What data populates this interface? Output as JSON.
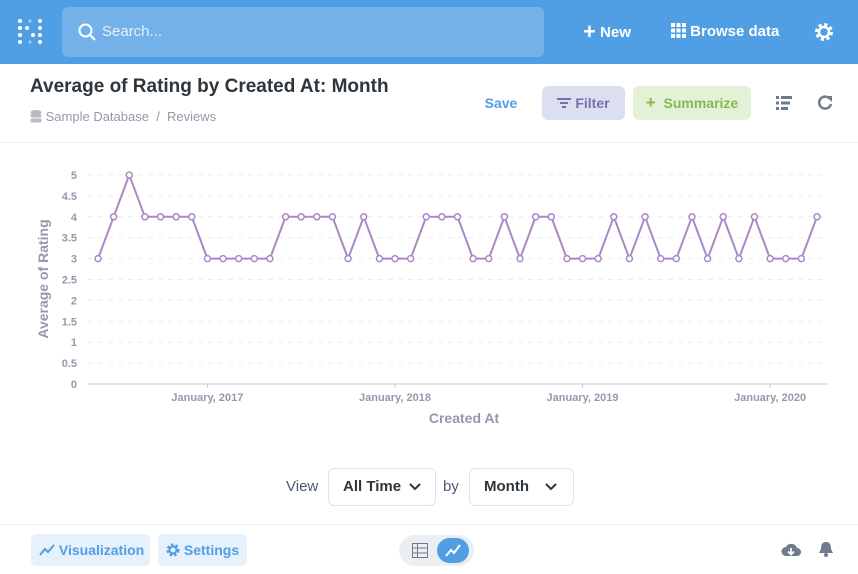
{
  "nav": {
    "search_placeholder": "Search...",
    "new": "New",
    "browse": "Browse data"
  },
  "header": {
    "title": "Average of Rating by Created At: Month",
    "database": "Sample Database",
    "table": "Reviews",
    "save": "Save",
    "filter": "Filter",
    "summarize": "Summarize"
  },
  "chart_data": {
    "type": "line",
    "x_label": "Created At",
    "y_label": "Average of Rating",
    "color": "#a989c5",
    "grid": true,
    "x": [
      "2016-06",
      "2016-07",
      "2016-08",
      "2016-09",
      "2016-10",
      "2016-11",
      "2016-12",
      "2017-01",
      "2017-02",
      "2017-03",
      "2017-04",
      "2017-05",
      "2017-06",
      "2017-07",
      "2017-08",
      "2017-09",
      "2017-10",
      "2017-11",
      "2017-12",
      "2018-01",
      "2018-02",
      "2018-03",
      "2018-04",
      "2018-05",
      "2018-06",
      "2018-07",
      "2018-08",
      "2018-09",
      "2018-10",
      "2018-11",
      "2018-12",
      "2019-01",
      "2019-02",
      "2019-03",
      "2019-04",
      "2019-05",
      "2019-06",
      "2019-07",
      "2019-08",
      "2019-09",
      "2019-10",
      "2019-11",
      "2019-12",
      "2020-01",
      "2020-02",
      "2020-03",
      "2020-04"
    ],
    "values": [
      3,
      4,
      5,
      4,
      4,
      4,
      4,
      3,
      3,
      3,
      3,
      3,
      4,
      4,
      4,
      4,
      3,
      4,
      3,
      3,
      3,
      4,
      4,
      4,
      3,
      3,
      4,
      3,
      4,
      4,
      3,
      3,
      3,
      4,
      3,
      4,
      3,
      3,
      4,
      3,
      4,
      3,
      4,
      3,
      3,
      3,
      4
    ],
    "xticks": [
      {
        "value": "2017-01",
        "label": "January, 2017"
      },
      {
        "value": "2018-01",
        "label": "January, 2018"
      },
      {
        "value": "2019-01",
        "label": "January, 2019"
      },
      {
        "value": "2020-01",
        "label": "January, 2020"
      }
    ],
    "ylim": [
      0,
      5
    ],
    "yticks": [
      0,
      0.5,
      1,
      1.5,
      2,
      2.5,
      3,
      3.5,
      4,
      4.5,
      5
    ]
  },
  "controls": {
    "view": "View",
    "range": "All Time",
    "by": "by",
    "unit": "Month"
  },
  "footer": {
    "visualization": "Visualization",
    "settings": "Settings"
  }
}
